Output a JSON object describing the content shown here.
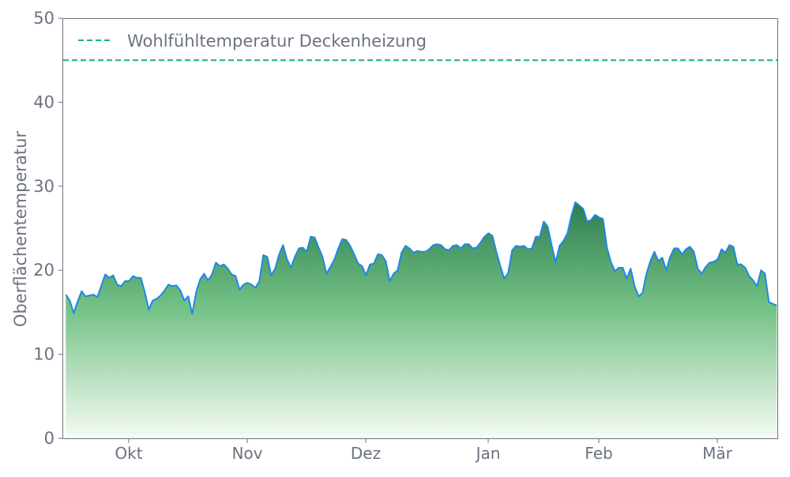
{
  "chart_data": {
    "type": "area",
    "title": "",
    "xlabel": "",
    "ylabel": "Oberflächentemperatur",
    "ylim": [
      0,
      50
    ],
    "y_ticks": [
      0,
      10,
      20,
      30,
      40,
      50
    ],
    "x_ticks": [
      {
        "label": "Okt",
        "index": 16
      },
      {
        "label": "Nov",
        "index": 46
      },
      {
        "label": "Dez",
        "index": 76
      },
      {
        "label": "Jan",
        "index": 107
      },
      {
        "label": "Feb",
        "index": 135
      },
      {
        "label": "Mär",
        "index": 165
      }
    ],
    "grid": false,
    "legend_position": "top-left",
    "series": [
      {
        "values": [
          17.1,
          16.4,
          14.9,
          16.3,
          17.5,
          16.9,
          17.0,
          17.1,
          16.8,
          18.2,
          19.5,
          19.1,
          19.4,
          18.3,
          18.1,
          18.7,
          18.7,
          19.3,
          19.1,
          19.1,
          17.4,
          15.3,
          16.4,
          16.6,
          17.0,
          17.6,
          18.3,
          18.1,
          18.2,
          17.6,
          16.4,
          16.9,
          14.8,
          17.4,
          18.9,
          19.6,
          18.8,
          19.5,
          20.9,
          20.5,
          20.7,
          20.2,
          19.5,
          19.3,
          17.7,
          18.3,
          18.5,
          18.3,
          17.9,
          18.7,
          21.8,
          21.6,
          19.4,
          20.2,
          21.9,
          23.0,
          21.3,
          20.3,
          21.6,
          22.6,
          22.7,
          22.2,
          24.0,
          23.9,
          22.7,
          21.6,
          19.6,
          20.4,
          21.3,
          22.6,
          23.7,
          23.6,
          22.9,
          21.9,
          20.8,
          20.5,
          19.4,
          20.7,
          20.8,
          21.9,
          21.8,
          21.1,
          18.7,
          19.6,
          20.0,
          22.1,
          22.9,
          22.6,
          22.1,
          22.3,
          22.2,
          22.2,
          22.5,
          23.0,
          23.1,
          23.0,
          22.5,
          22.4,
          22.9,
          23.0,
          22.6,
          23.1,
          23.1,
          22.6,
          22.7,
          23.3,
          24.0,
          24.4,
          24.1,
          22.2,
          20.5,
          19.0,
          19.7,
          22.4,
          22.9,
          22.8,
          22.9,
          22.5,
          22.6,
          24.0,
          24.0,
          25.8,
          25.2,
          23.0,
          20.9,
          22.9,
          23.5,
          24.4,
          26.5,
          28.1,
          27.7,
          27.3,
          25.8,
          26.0,
          26.6,
          26.3,
          26.1,
          22.7,
          21.0,
          19.9,
          20.3,
          20.3,
          19.0,
          20.2,
          18.1,
          16.9,
          17.3,
          19.6,
          21.1,
          22.2,
          21.1,
          21.5,
          20.0,
          21.6,
          22.6,
          22.6,
          21.9,
          22.5,
          22.8,
          22.2,
          20.2,
          19.6,
          20.4,
          20.9,
          21.0,
          21.3,
          22.5,
          22.1,
          23.0,
          22.8,
          20.7,
          20.7,
          20.3,
          19.3,
          18.8,
          18.1,
          20.0,
          19.6,
          16.2,
          16.0,
          15.8
        ],
        "line_color": "#1e88e5",
        "fill_top_color": "#2e7d4f",
        "fill_bottom_color": "#f5fbf4"
      }
    ],
    "reference_lines": [
      {
        "name": "Wohlfühltemperatur Deckenheizung",
        "value": 45,
        "color": "#1aaf80",
        "style": "dashed"
      }
    ]
  }
}
